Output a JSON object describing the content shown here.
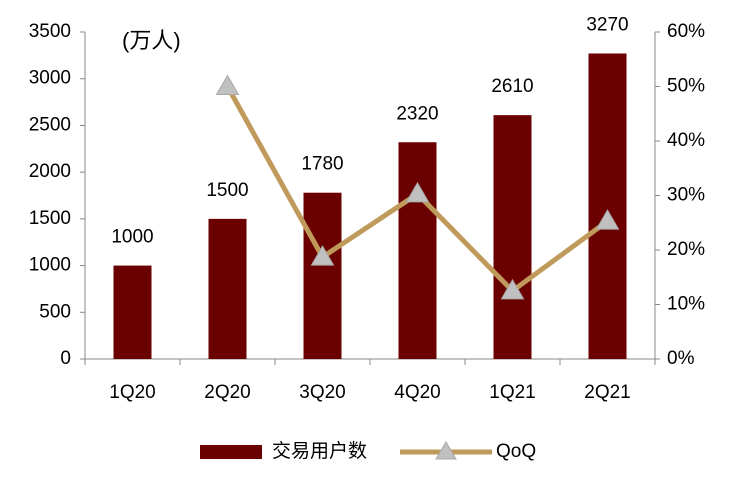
{
  "chart_data": {
    "type": "bar",
    "annotation": "(万人)",
    "categories": [
      "1Q20",
      "2Q20",
      "3Q20",
      "4Q20",
      "1Q21",
      "2Q21"
    ],
    "series": [
      {
        "name": "交易用户数",
        "type": "bar",
        "color": "#6b0000",
        "values": [
          1000,
          1500,
          1780,
          2320,
          2610,
          3270
        ]
      },
      {
        "name": "QoQ",
        "type": "line",
        "axis": "y2",
        "color": "#c09a5b",
        "marker_color": "#c0c0c0",
        "values": [
          null,
          50,
          18.7,
          30.3,
          12.5,
          25.3
        ]
      }
    ],
    "ylim": [
      0,
      3500
    ],
    "yticks": [
      0,
      500,
      1000,
      1500,
      2000,
      2500,
      3000,
      3500
    ],
    "y2lim": [
      0,
      60
    ],
    "y2ticks": [
      {
        "value": 0,
        "label": "0%"
      },
      {
        "value": 10,
        "label": "10%"
      },
      {
        "value": 20,
        "label": "20%"
      },
      {
        "value": 30,
        "label": "30%"
      },
      {
        "value": 40,
        "label": "40%"
      },
      {
        "value": 50,
        "label": "50%"
      },
      {
        "value": 60,
        "label": "60%"
      }
    ],
    "legend": "bottom"
  }
}
